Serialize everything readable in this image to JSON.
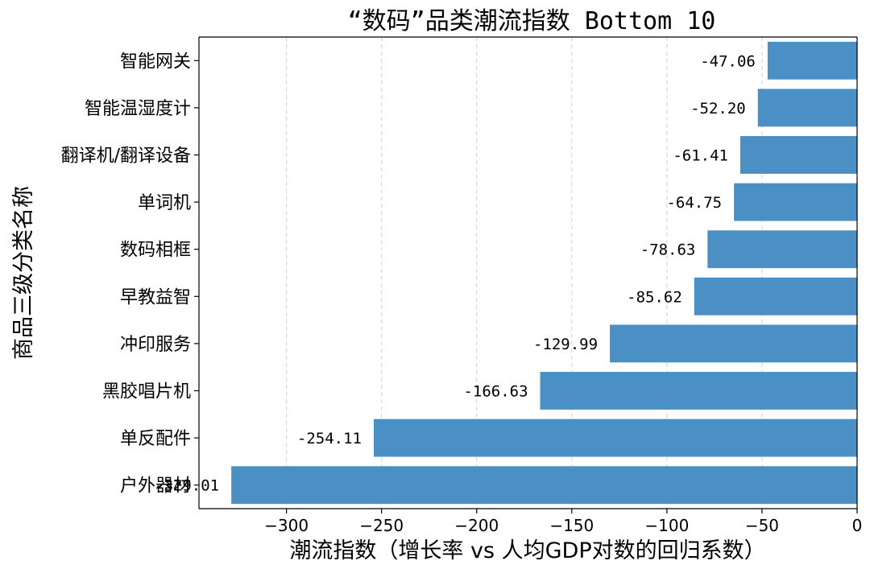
{
  "chart_data": {
    "type": "bar",
    "orientation": "horizontal",
    "title": "“数码”品类潮流指数 Bottom 10",
    "xlabel": "潮流指数（增长率 vs 人均GDP对数的回归系数）",
    "ylabel": "商品三级分类名称",
    "categories": [
      "智能网关",
      "智能温湿度计",
      "翻译机/翻译设备",
      "单词机",
      "数码相框",
      "早教益智",
      "冲印服务",
      "黑胶唱片机",
      "单反配件",
      "户外器材"
    ],
    "values": [
      -47.06,
      -52.2,
      -61.41,
      -64.75,
      -78.63,
      -85.62,
      -129.99,
      -166.63,
      -254.11,
      -329.01
    ],
    "value_labels": [
      "-47.06",
      "-52.20",
      "-61.41",
      "-64.75",
      "-78.63",
      "-85.62",
      "-129.99",
      "-166.63",
      "-254.11",
      "-329.01"
    ],
    "xlim": [
      -346,
      0
    ],
    "xticks": [
      -300,
      -250,
      -200,
      -150,
      -100,
      -50,
      0
    ],
    "xtick_labels": [
      "−300",
      "−250",
      "−200",
      "−150",
      "−100",
      "−50",
      "0"
    ],
    "grid": "x-dashed",
    "legend": "none",
    "bar_color": "#4a90c4"
  }
}
